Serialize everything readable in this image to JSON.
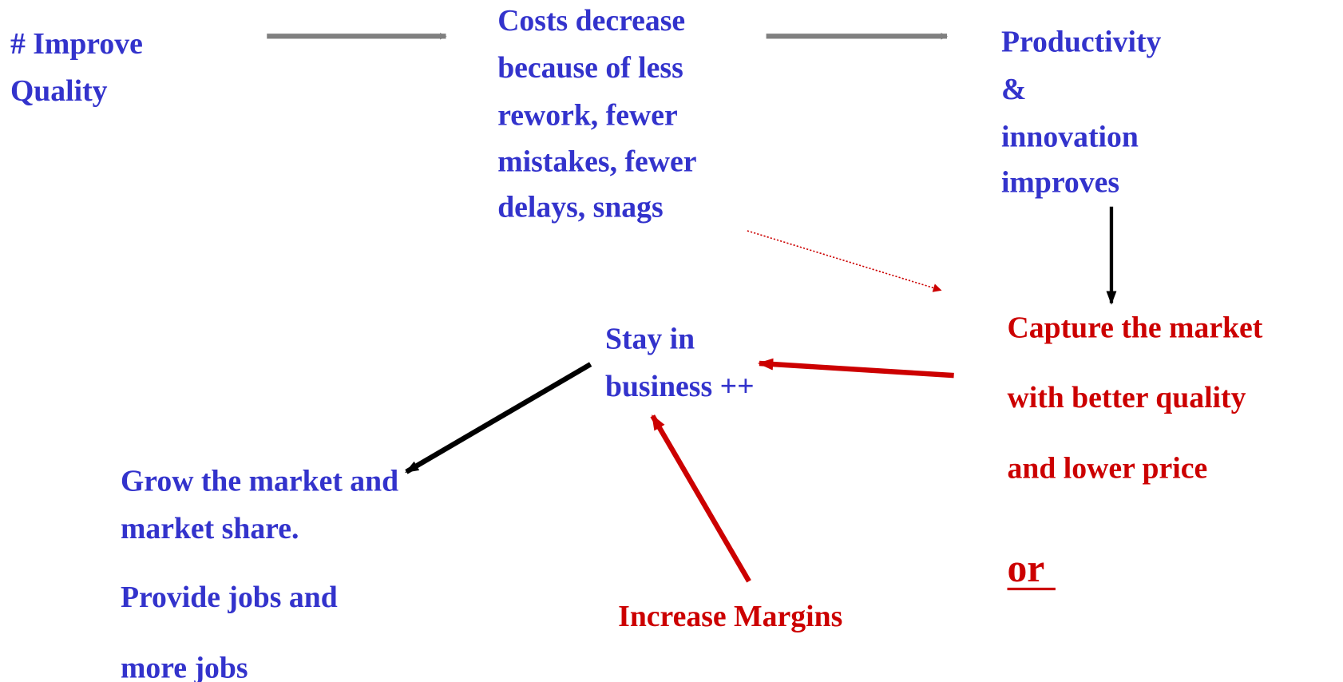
{
  "nodes": [
    {
      "lines": [
        "# Improve",
        "Quality"
      ]
    },
    {
      "lines": [
        "Costs decrease",
        "because of less",
        "rework, fewer",
        "mistakes, fewer",
        "delays, snags"
      ]
    },
    {
      "lines": [
        "Productivity",
        "&",
        "innovation",
        "improves"
      ]
    },
    {
      "lines": [
        "Capture the market",
        "with better quality",
        "and lower price"
      ]
    },
    {
      "lines": [
        "or"
      ]
    },
    {
      "lines": [
        "Stay in",
        "business ++"
      ]
    },
    {
      "lines": [
        "Grow the market and",
        "market share.",
        "Provide jobs and",
        "more jobs"
      ]
    },
    {
      "lines": [
        "Increase Margins"
      ]
    }
  ]
}
